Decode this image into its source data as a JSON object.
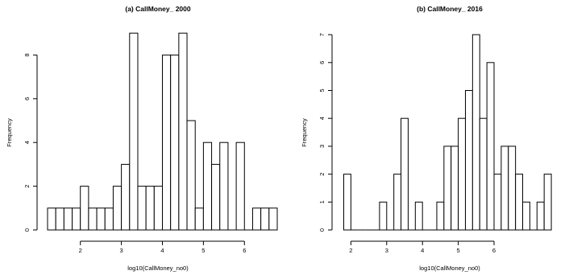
{
  "chart_data": [
    {
      "type": "bar",
      "title": "(a) CallMoney_ 2000",
      "xlabel": "log10(CallMoney_no0)",
      "ylabel": "Frequency",
      "bin_width": 0.2,
      "xlim": [
        1.2,
        6.6
      ],
      "ylim": [
        0,
        9
      ],
      "x_ticks": [
        2,
        3,
        4,
        5,
        6
      ],
      "y_ticks": [
        0,
        2,
        4,
        6,
        8
      ],
      "grid": false,
      "bins": [
        {
          "start": 1.2,
          "count": 1
        },
        {
          "start": 1.4,
          "count": 1
        },
        {
          "start": 1.6,
          "count": 1
        },
        {
          "start": 1.8,
          "count": 1
        },
        {
          "start": 2.0,
          "count": 2
        },
        {
          "start": 2.2,
          "count": 1
        },
        {
          "start": 2.4,
          "count": 1
        },
        {
          "start": 2.6,
          "count": 1
        },
        {
          "start": 2.8,
          "count": 2
        },
        {
          "start": 3.0,
          "count": 3
        },
        {
          "start": 3.2,
          "count": 9
        },
        {
          "start": 3.4,
          "count": 2
        },
        {
          "start": 3.6,
          "count": 2
        },
        {
          "start": 3.8,
          "count": 2
        },
        {
          "start": 4.0,
          "count": 8
        },
        {
          "start": 4.2,
          "count": 8
        },
        {
          "start": 4.4,
          "count": 9
        },
        {
          "start": 4.6,
          "count": 5
        },
        {
          "start": 4.8,
          "count": 1
        },
        {
          "start": 5.0,
          "count": 4
        },
        {
          "start": 5.2,
          "count": 3
        },
        {
          "start": 5.4,
          "count": 4
        },
        {
          "start": 5.6,
          "count": 0
        },
        {
          "start": 5.8,
          "count": 4
        },
        {
          "start": 6.0,
          "count": 0
        },
        {
          "start": 6.2,
          "count": 1
        },
        {
          "start": 6.4,
          "count": 1
        },
        {
          "start": 6.6,
          "count": 1
        }
      ]
    },
    {
      "type": "bar",
      "title": "(b) CallMoney_ 2016",
      "xlabel": "log10(CallMoney_no0)",
      "ylabel": "Frequency",
      "bin_width": 0.2,
      "xlim": [
        1.8,
        6.0
      ],
      "ylim": [
        0,
        7
      ],
      "x_ticks": [
        2,
        3,
        4,
        5,
        6
      ],
      "y_ticks": [
        0,
        1,
        2,
        3,
        4,
        5,
        6,
        7
      ],
      "grid": false,
      "bins": [
        {
          "start": 1.8,
          "count": 2
        },
        {
          "start": 2.0,
          "count": 0
        },
        {
          "start": 2.2,
          "count": 0
        },
        {
          "start": 2.4,
          "count": 0
        },
        {
          "start": 2.6,
          "count": 0
        },
        {
          "start": 2.8,
          "count": 1
        },
        {
          "start": 3.0,
          "count": 0
        },
        {
          "start": 3.2,
          "count": 2
        },
        {
          "start": 3.4,
          "count": 4
        },
        {
          "start": 3.6,
          "count": 0
        },
        {
          "start": 3.8,
          "count": 1
        },
        {
          "start": 4.0,
          "count": 0
        },
        {
          "start": 4.2,
          "count": 0
        },
        {
          "start": 4.4,
          "count": 1
        },
        {
          "start": 4.6,
          "count": 3
        },
        {
          "start": 4.8,
          "count": 3
        },
        {
          "start": 5.0,
          "count": 4
        },
        {
          "start": 5.2,
          "count": 5
        },
        {
          "start": 5.4,
          "count": 7
        },
        {
          "start": 5.6,
          "count": 4
        },
        {
          "start": 5.8,
          "count": 6
        },
        {
          "start": 6.0,
          "count": 2
        },
        {
          "start": 6.2,
          "count": 3
        },
        {
          "start": 6.4,
          "count": 3
        },
        {
          "start": 6.6,
          "count": 2
        },
        {
          "start": 6.8,
          "count": 1
        },
        {
          "start": 7.0,
          "count": 0
        },
        {
          "start": 7.2,
          "count": 1
        },
        {
          "start": 7.4,
          "count": 2
        }
      ]
    }
  ]
}
